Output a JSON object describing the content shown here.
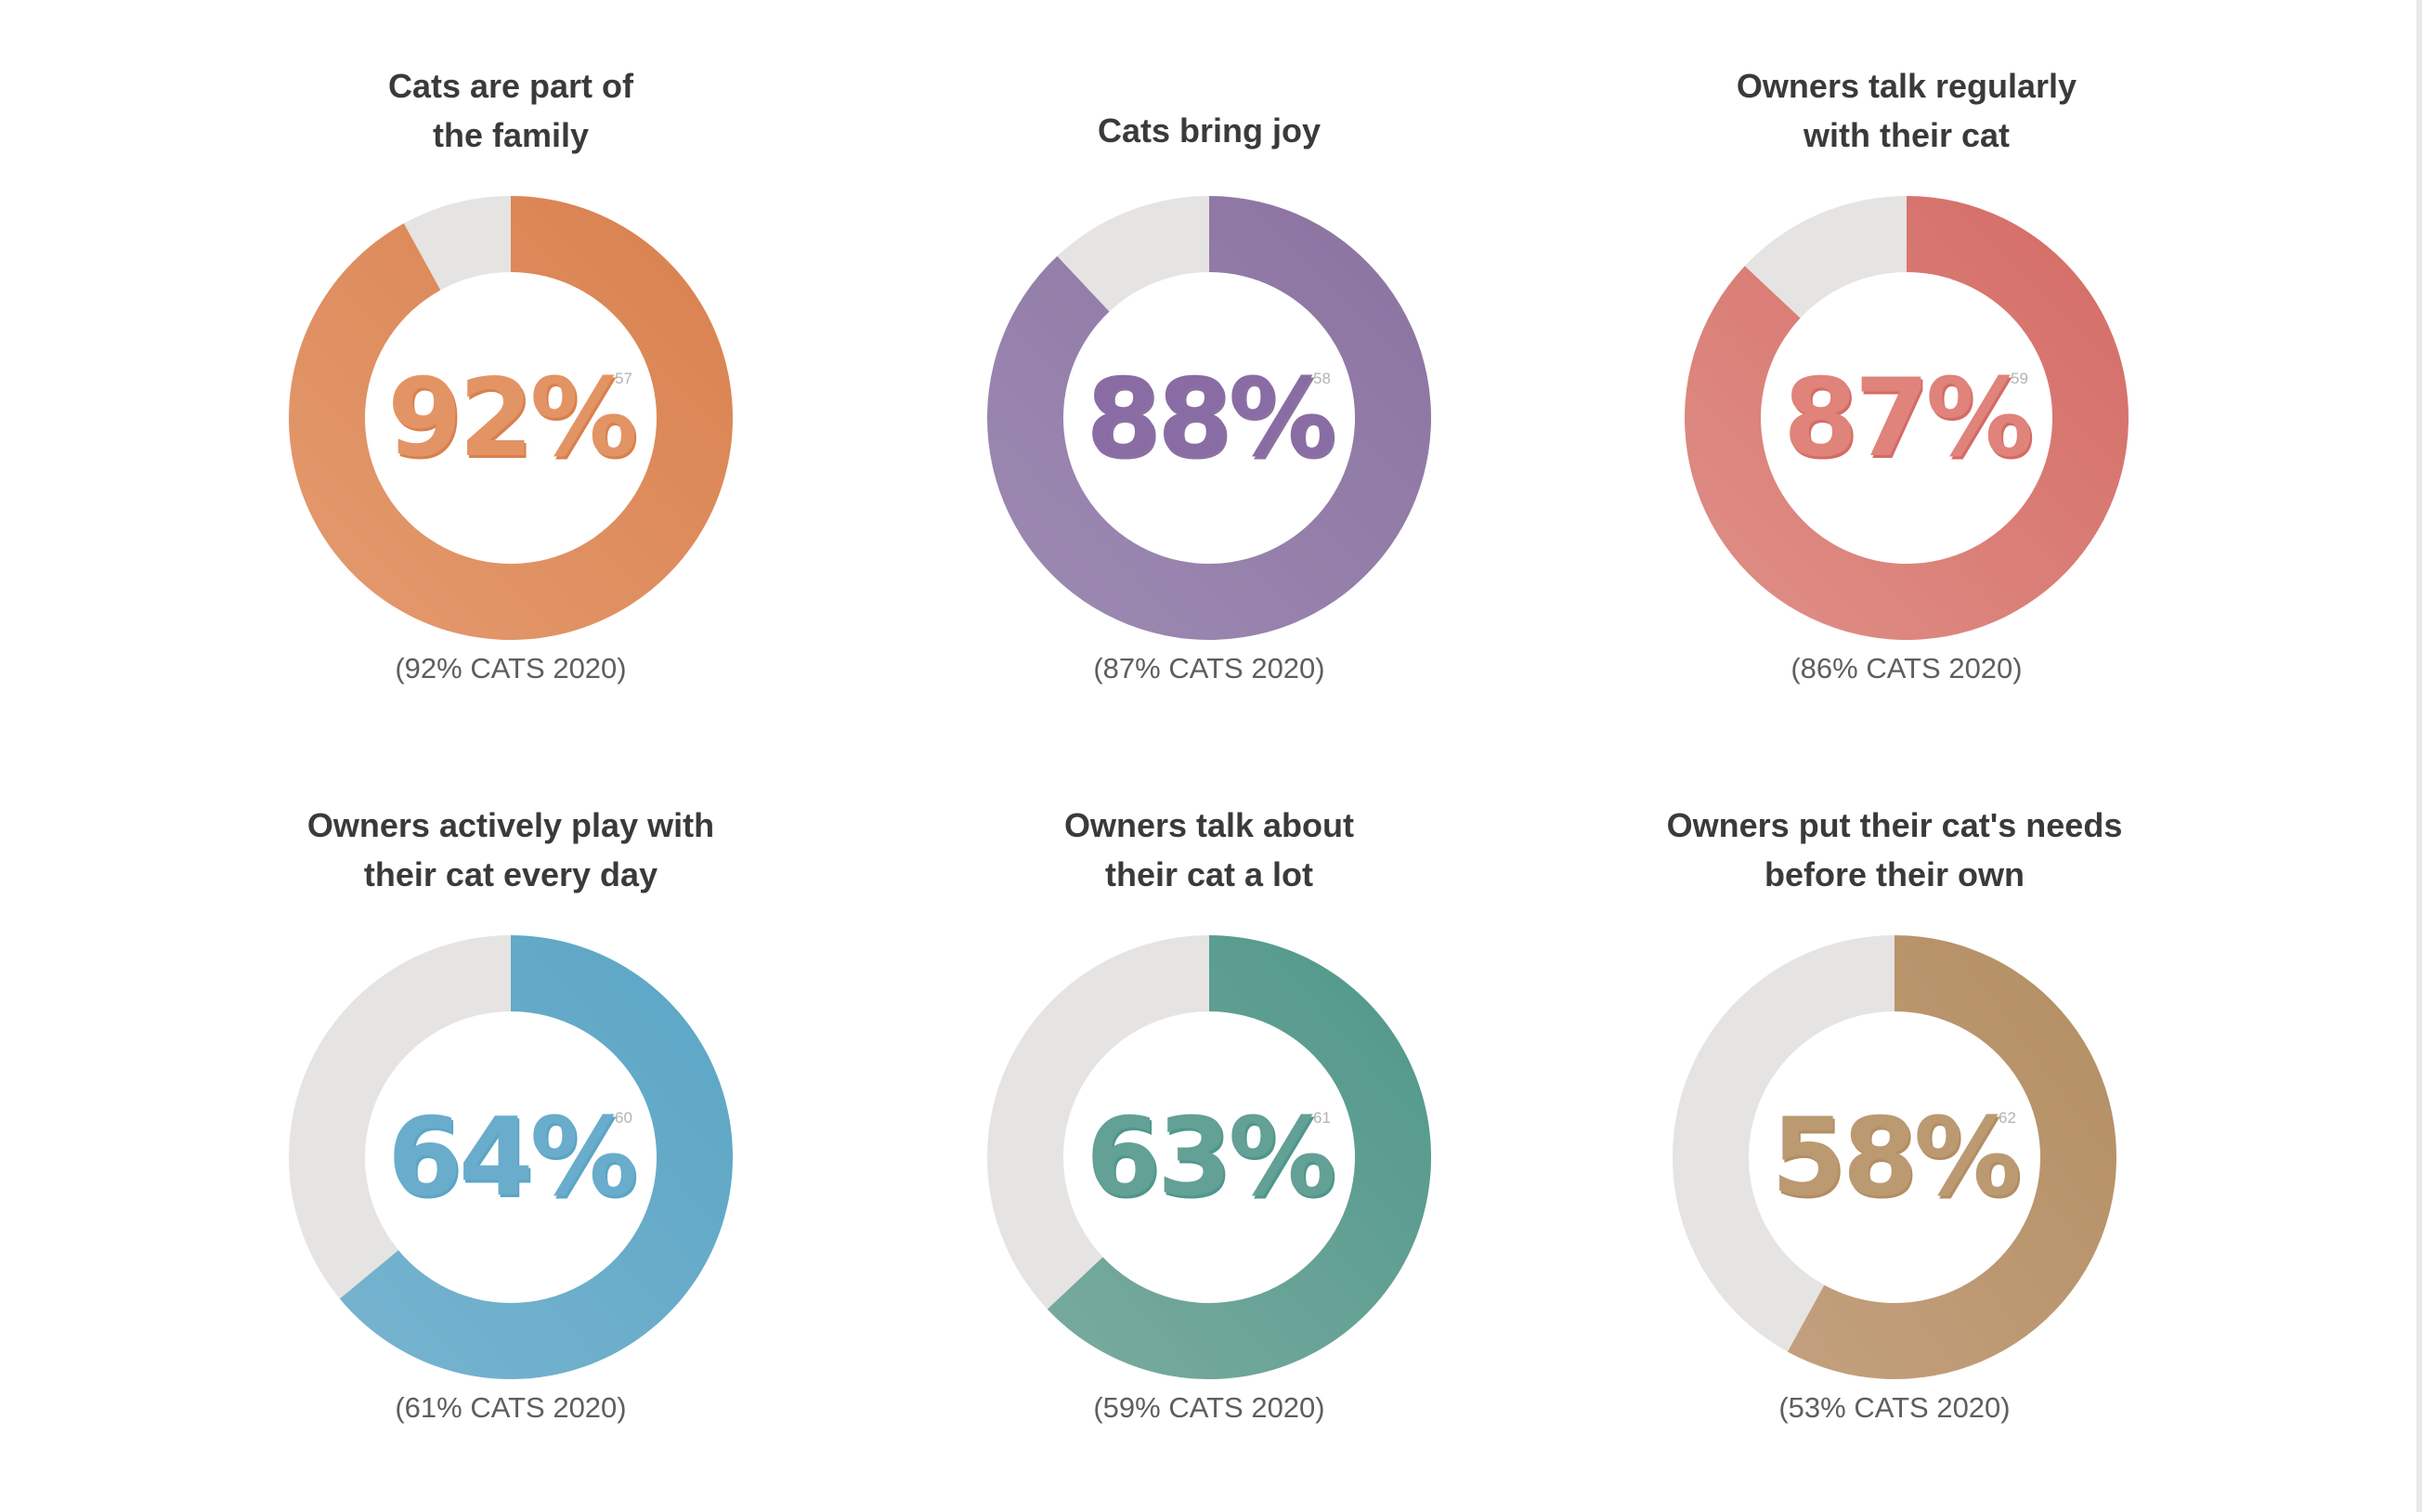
{
  "chart_data": [
    {
      "type": "pie",
      "title_lines": [
        "Cats are part of",
        "the family"
      ],
      "value": 92,
      "label": "92%",
      "footnote": "57",
      "comparison": "(92% CATS 2020)",
      "color": "#d9804e",
      "light": "#e49b6f",
      "text_color": "#e39465"
    },
    {
      "type": "pie",
      "title_lines": [
        "Cats bring joy"
      ],
      "value": 88,
      "label": "88%",
      "footnote": "58",
      "comparison": "(87% CATS 2020)",
      "color": "#8b72a0",
      "light": "#9d8bb3",
      "text_color": "#8a6ca4"
    },
    {
      "type": "pie",
      "title_lines": [
        "Owners talk regularly",
        "with their cat"
      ],
      "value": 87,
      "label": "87%",
      "footnote": "59",
      "comparison": "(86% CATS 2020)",
      "color": "#d46b65",
      "light": "#df9088",
      "text_color": "#df837b"
    },
    {
      "type": "pie",
      "title_lines": [
        "Owners actively play with",
        "their cat every day"
      ],
      "value": 64,
      "label": "64%",
      "footnote": "60",
      "comparison": "(61% CATS 2020)",
      "color": "#5ba5c5",
      "light": "#77b4cf",
      "text_color": "#6aaccb"
    },
    {
      "type": "pie",
      "title_lines": [
        "Owners talk about",
        "their cat a lot"
      ],
      "value": 63,
      "label": "63%",
      "footnote": "61",
      "comparison": "(59% CATS 2020)",
      "color": "#4f978b",
      "light": "#7aab9f",
      "text_color": "#63a095"
    },
    {
      "type": "pie",
      "title_lines": [
        "Owners put their cat's needs",
        "before their own"
      ],
      "value": 58,
      "label": "58%",
      "footnote": "62",
      "comparison": "(53% CATS 2020)",
      "color": "#b38e62",
      "light": "#c3a07e",
      "text_color": "#bb9a72"
    }
  ],
  "track_color": "#e5e4e2"
}
